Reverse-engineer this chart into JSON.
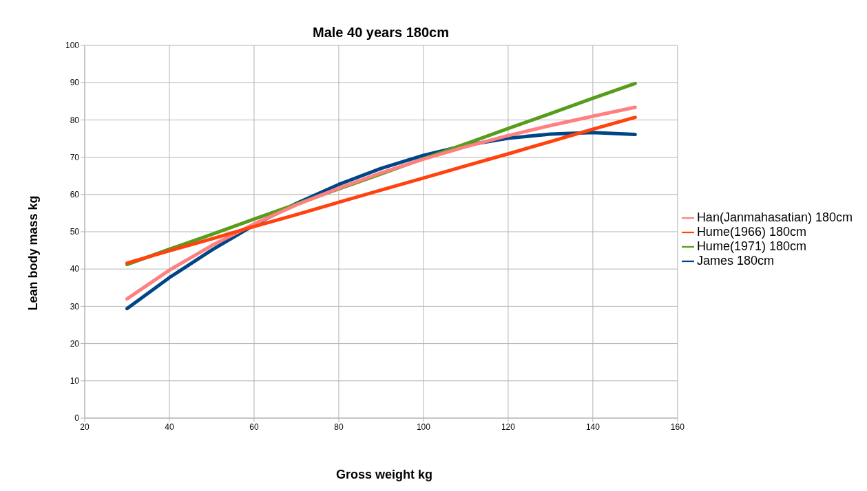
{
  "chart_data": {
    "type": "line",
    "title": "Male 40 years 180cm",
    "xlabel": "Gross weight kg",
    "ylabel": "Lean body mass kg",
    "x": [
      30,
      40,
      50,
      60,
      70,
      80,
      90,
      100,
      110,
      120,
      130,
      140,
      150
    ],
    "series": [
      {
        "name": "James 180cm",
        "color": "#004586",
        "values": [
          29.4,
          37.7,
          45.1,
          51.8,
          57.6,
          62.7,
          67.0,
          70.5,
          73.2,
          75.1,
          76.2,
          76.6,
          76.1
        ]
      },
      {
        "name": "Hume(1971) 180cm",
        "color": "#579d1c",
        "values": [
          41.2,
          45.3,
          49.3,
          53.4,
          57.4,
          61.5,
          65.5,
          69.6,
          73.6,
          77.7,
          81.7,
          85.8,
          89.8
        ]
      },
      {
        "name": "Han(Janmahasatian) 180cm",
        "color": "#ff8080",
        "values": [
          32.0,
          39.7,
          46.3,
          52.1,
          57.2,
          61.7,
          65.8,
          69.5,
          72.8,
          75.8,
          78.5,
          81.0,
          83.4
        ]
      },
      {
        "name": "Hume(1966) 180cm",
        "color": "#ff420e",
        "values": [
          41.6,
          44.9,
          48.1,
          51.4,
          54.6,
          57.9,
          61.2,
          64.4,
          67.7,
          70.9,
          74.2,
          77.5,
          80.7
        ]
      }
    ],
    "xlim": [
      20,
      160
    ],
    "xticks": [
      20,
      40,
      60,
      80,
      100,
      120,
      140,
      160
    ],
    "ylim": [
      0,
      100
    ],
    "yticks": [
      0,
      10,
      20,
      30,
      40,
      50,
      60,
      70,
      80,
      90,
      100
    ],
    "grid": true,
    "legend": "right",
    "marker": "none",
    "line_style": "solid"
  }
}
